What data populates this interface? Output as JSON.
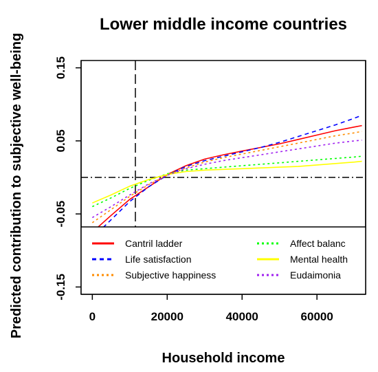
{
  "chart_data": {
    "type": "line",
    "title": "Lower middle income countries",
    "xlabel": "Household income",
    "ylabel": "Predicted contribution to subjective well-being",
    "xlim": [
      -3000,
      73000
    ],
    "ylim": [
      -0.16,
      0.16
    ],
    "xticks": [
      0,
      20000,
      40000,
      60000
    ],
    "xtick_labels": [
      "0",
      "20000",
      "40000",
      "60000"
    ],
    "yticks": [
      -0.15,
      -0.05,
      0.05,
      0.15
    ],
    "ytick_labels": [
      "-0.15",
      "-0.05",
      "0.05",
      "0.15"
    ],
    "reference_lines": {
      "vertical_x": 11500,
      "horizontal_y": 0
    },
    "legend": {
      "placement": "bottom",
      "columns": 2
    },
    "x": [
      0,
      5000,
      10000,
      15000,
      20000,
      25000,
      30000,
      35000,
      40000,
      45000,
      50000,
      55000,
      60000,
      65000,
      70000,
      72000
    ],
    "series": [
      {
        "name": "Cantril ladder",
        "label": "Cantril ladder",
        "color": "#ff0000",
        "dash": "solid",
        "values": [
          -0.075,
          -0.052,
          -0.03,
          -0.013,
          0.004,
          0.016,
          0.025,
          0.031,
          0.036,
          0.041,
          0.046,
          0.052,
          0.058,
          0.064,
          0.069,
          0.071
        ]
      },
      {
        "name": "Life satisfaction",
        "label": "Life satisfaction",
        "color": "#0000ff",
        "dash": "dashed",
        "values": [
          -0.083,
          -0.058,
          -0.033,
          -0.013,
          0.003,
          0.015,
          0.023,
          0.029,
          0.035,
          0.041,
          0.048,
          0.056,
          0.064,
          0.072,
          0.081,
          0.085
        ]
      },
      {
        "name": "Subjective happiness",
        "label": "Subjective happiness",
        "color": "#ff8c00",
        "dash": "dotted",
        "values": [
          -0.062,
          -0.044,
          -0.026,
          -0.01,
          0.003,
          0.013,
          0.021,
          0.027,
          0.032,
          0.037,
          0.042,
          0.047,
          0.052,
          0.057,
          0.061,
          0.063
        ]
      },
      {
        "name": "Affect balance",
        "label": "Affect balanc",
        "color": "#00ff00",
        "dash": "dotted",
        "values": [
          -0.04,
          -0.028,
          -0.015,
          -0.004,
          0.005,
          0.01,
          0.012,
          0.014,
          0.016,
          0.018,
          0.02,
          0.022,
          0.024,
          0.026,
          0.028,
          0.029
        ]
      },
      {
        "name": "Mental health",
        "label": "Mental health",
        "color": "#ffff00",
        "dash": "solid",
        "values": [
          -0.035,
          -0.024,
          -0.012,
          -0.003,
          0.004,
          0.008,
          0.01,
          0.011,
          0.012,
          0.013,
          0.014,
          0.015,
          0.017,
          0.019,
          0.021,
          0.022
        ]
      },
      {
        "name": "Eudaimonia",
        "label": "Eudaimonia",
        "color": "#a020f0",
        "dash": "dotted",
        "values": [
          -0.055,
          -0.04,
          -0.024,
          -0.009,
          0.003,
          0.012,
          0.018,
          0.023,
          0.027,
          0.031,
          0.035,
          0.039,
          0.043,
          0.047,
          0.05,
          0.051
        ]
      }
    ]
  }
}
